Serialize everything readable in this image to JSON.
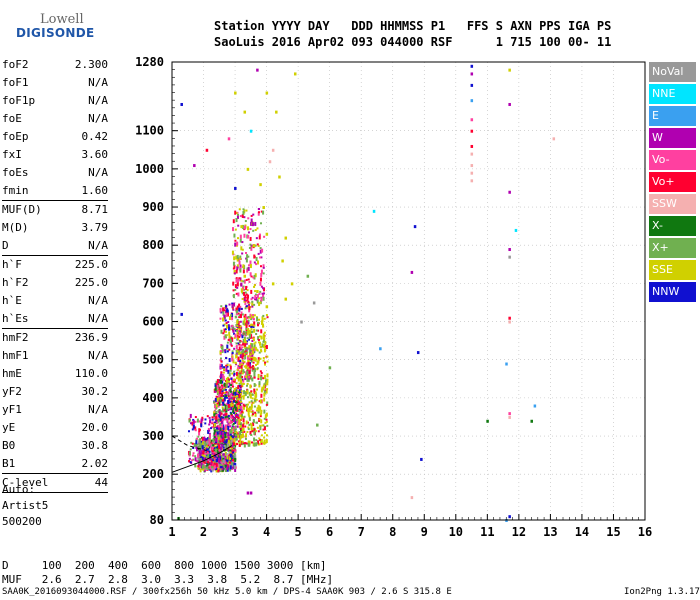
{
  "logo": {
    "line1": "Lowell",
    "line2": "DIGISONDE"
  },
  "header": {
    "line1": "Station YYYY DAY   DDD HHMMSS P1   FFS S AXN PPS IGA PS",
    "line2": "SaoLuis 2016 Apr02 093 044000 RSF      1 715 100 00- 11"
  },
  "params": [
    {
      "k": "foF2",
      "v": "2.300"
    },
    {
      "k": "foF1",
      "v": "N/A"
    },
    {
      "k": "foF1p",
      "v": "N/A"
    },
    {
      "k": "foE",
      "v": "N/A"
    },
    {
      "k": "foEp",
      "v": "0.42"
    },
    {
      "k": "fxI",
      "v": "3.60"
    },
    {
      "k": "foEs",
      "v": "N/A"
    },
    {
      "k": "fmin",
      "v": "1.60",
      "sep": true
    },
    {
      "k": "MUF(D)",
      "v": "8.71"
    },
    {
      "k": "M(D)",
      "v": "3.79"
    },
    {
      "k": "D",
      "v": "N/A",
      "sep": true
    },
    {
      "k": "h`F",
      "v": "225.0"
    },
    {
      "k": "h`F2",
      "v": "225.0"
    },
    {
      "k": "h`E",
      "v": "N/A"
    },
    {
      "k": "h`Es",
      "v": "N/A",
      "sep": true
    },
    {
      "k": "hmF2",
      "v": "236.9"
    },
    {
      "k": "hmF1",
      "v": "N/A"
    },
    {
      "k": "hmE",
      "v": "110.0"
    },
    {
      "k": "yF2",
      "v": "30.2"
    },
    {
      "k": "yF1",
      "v": "N/A"
    },
    {
      "k": "yE",
      "v": "20.0"
    },
    {
      "k": "B0",
      "v": "30.8"
    },
    {
      "k": "B1",
      "v": "2.02",
      "sep": true
    },
    {
      "k": "C-level",
      "v": "44",
      "sep": true
    }
  ],
  "auto": {
    "l1": "Auto:",
    "l2": "Artist5",
    "l3": "500200"
  },
  "legend": [
    {
      "label": "NoVal",
      "color": "#999999"
    },
    {
      "label": "NNE",
      "color": "#00e5ff"
    },
    {
      "label": "E",
      "color": "#3aa0f0"
    },
    {
      "label": "W",
      "color": "#b000b0"
    },
    {
      "label": "Vo-",
      "color": "#ff40a0"
    },
    {
      "label": "Vo+",
      "color": "#ff0030"
    },
    {
      "label": "SSW",
      "color": "#f5b0b0"
    },
    {
      "label": "X-",
      "color": "#107810"
    },
    {
      "label": "X+",
      "color": "#70b050"
    },
    {
      "label": "SSE",
      "color": "#d0d000"
    },
    {
      "label": "NNW",
      "color": "#1010d0"
    }
  ],
  "muf": {
    "line1": "D     100  200  400  600  800 1000 1500 3000 [km]",
    "line2": "MUF   2.6  2.7  2.8  3.0  3.3  3.8  5.2  8.7 [MHz]"
  },
  "footer": {
    "left": "SAA0K_2016093044000.RSF / 300fx256h 50 kHz 5.0 km / DPS-4 SAA0K 903 / 2.6 S 315.8 E",
    "right": "Ion2Png 1.3.17"
  },
  "chart_data": {
    "type": "scatter",
    "xlim": [
      1,
      16
    ],
    "ylim": [
      80,
      1280
    ],
    "x_ticks": [
      1,
      2,
      3,
      4,
      5,
      6,
      7,
      8,
      9,
      10,
      11,
      12,
      13,
      14,
      15,
      16
    ],
    "y_ticks": [
      80,
      200,
      300,
      400,
      500,
      600,
      700,
      800,
      900,
      1000,
      1100,
      1280
    ],
    "xlabel": "",
    "ylabel": "",
    "trace": {
      "x": [
        1.0,
        1.5,
        2.0,
        2.5,
        2.9
      ],
      "y": [
        205,
        220,
        235,
        255,
        275
      ]
    },
    "points": [
      {
        "x": 1.3,
        "y": 1170,
        "c": "NNW"
      },
      {
        "x": 1.3,
        "y": 620,
        "c": "NNW"
      },
      {
        "x": 1.2,
        "y": 85,
        "c": "X-"
      },
      {
        "x": 1.7,
        "y": 1010,
        "c": "W"
      },
      {
        "x": 2.1,
        "y": 1050,
        "c": "Vo+"
      },
      {
        "x": 2.8,
        "y": 1080,
        "c": "Vo-"
      },
      {
        "x": 3.0,
        "y": 1200,
        "c": "SSE"
      },
      {
        "x": 3.3,
        "y": 1150,
        "c": "SSE"
      },
      {
        "x": 4.0,
        "y": 1200,
        "c": "SSE"
      },
      {
        "x": 4.3,
        "y": 1150,
        "c": "SSE"
      },
      {
        "x": 3.5,
        "y": 1100,
        "c": "NNE"
      },
      {
        "x": 3.0,
        "y": 950,
        "c": "NNW"
      },
      {
        "x": 3.4,
        "y": 1000,
        "c": "SSE"
      },
      {
        "x": 3.8,
        "y": 960,
        "c": "SSE"
      },
      {
        "x": 4.1,
        "y": 1020,
        "c": "SSW"
      },
      {
        "x": 4.2,
        "y": 1050,
        "c": "SSW"
      },
      {
        "x": 4.4,
        "y": 980,
        "c": "SSE"
      },
      {
        "x": 3.9,
        "y": 900,
        "c": "SSE"
      },
      {
        "x": 3.2,
        "y": 850,
        "c": "SSE"
      },
      {
        "x": 3.6,
        "y": 800,
        "c": "SSE"
      },
      {
        "x": 4.0,
        "y": 830,
        "c": "SSE"
      },
      {
        "x": 4.6,
        "y": 820,
        "c": "SSE"
      },
      {
        "x": 4.5,
        "y": 760,
        "c": "SSE"
      },
      {
        "x": 4.2,
        "y": 700,
        "c": "SSE"
      },
      {
        "x": 3.3,
        "y": 720,
        "c": "SSE"
      },
      {
        "x": 3.7,
        "y": 680,
        "c": "SSE"
      },
      {
        "x": 4.0,
        "y": 640,
        "c": "SSE"
      },
      {
        "x": 4.6,
        "y": 660,
        "c": "SSE"
      },
      {
        "x": 4.8,
        "y": 700,
        "c": "SSE"
      },
      {
        "x": 5.5,
        "y": 650,
        "c": "NoVal"
      },
      {
        "x": 5.3,
        "y": 720,
        "c": "X+"
      },
      {
        "x": 5.1,
        "y": 600,
        "c": "NoVal"
      },
      {
        "x": 6.0,
        "y": 480,
        "c": "X+"
      },
      {
        "x": 5.6,
        "y": 330,
        "c": "X+"
      },
      {
        "x": 4.9,
        "y": 1250,
        "c": "SSE"
      },
      {
        "x": 3.7,
        "y": 1260,
        "c": "W"
      },
      {
        "x": 7.4,
        "y": 890,
        "c": "NNE"
      },
      {
        "x": 7.6,
        "y": 530,
        "c": "E"
      },
      {
        "x": 8.7,
        "y": 850,
        "c": "NNW"
      },
      {
        "x": 8.6,
        "y": 730,
        "c": "W"
      },
      {
        "x": 8.8,
        "y": 520,
        "c": "NNW"
      },
      {
        "x": 8.9,
        "y": 240,
        "c": "NNW"
      },
      {
        "x": 8.6,
        "y": 140,
        "c": "SSW"
      },
      {
        "x": 10.5,
        "y": 1270,
        "c": "NNW"
      },
      {
        "x": 10.5,
        "y": 1250,
        "c": "W"
      },
      {
        "x": 10.5,
        "y": 1220,
        "c": "NNW"
      },
      {
        "x": 10.5,
        "y": 1180,
        "c": "E"
      },
      {
        "x": 10.5,
        "y": 1130,
        "c": "Vo-"
      },
      {
        "x": 10.5,
        "y": 1100,
        "c": "Vo+"
      },
      {
        "x": 10.5,
        "y": 1060,
        "c": "Vo+"
      },
      {
        "x": 10.5,
        "y": 1040,
        "c": "SSW"
      },
      {
        "x": 10.5,
        "y": 1010,
        "c": "SSW"
      },
      {
        "x": 10.5,
        "y": 990,
        "c": "SSW"
      },
      {
        "x": 10.5,
        "y": 970,
        "c": "SSW"
      },
      {
        "x": 11.7,
        "y": 1260,
        "c": "SSE"
      },
      {
        "x": 11.7,
        "y": 1170,
        "c": "W"
      },
      {
        "x": 11.7,
        "y": 940,
        "c": "W"
      },
      {
        "x": 11.7,
        "y": 790,
        "c": "W"
      },
      {
        "x": 11.7,
        "y": 770,
        "c": "NoVal"
      },
      {
        "x": 11.7,
        "y": 610,
        "c": "Vo+"
      },
      {
        "x": 11.7,
        "y": 600,
        "c": "SSW"
      },
      {
        "x": 11.6,
        "y": 490,
        "c": "E"
      },
      {
        "x": 11.7,
        "y": 360,
        "c": "Vo-"
      },
      {
        "x": 11.7,
        "y": 350,
        "c": "SSW"
      },
      {
        "x": 11.7,
        "y": 90,
        "c": "NNW"
      },
      {
        "x": 11.6,
        "y": 80,
        "c": "E"
      },
      {
        "x": 11.0,
        "y": 340,
        "c": "X-"
      },
      {
        "x": 11.9,
        "y": 840,
        "c": "NNE"
      },
      {
        "x": 12.4,
        "y": 340,
        "c": "X-"
      },
      {
        "x": 12.5,
        "y": 380,
        "c": "E"
      },
      {
        "x": 13.1,
        "y": 1080,
        "c": "SSW"
      },
      {
        "x": 3.4,
        "y": 152,
        "c": "W"
      },
      {
        "x": 3.5,
        "y": 152,
        "c": "W"
      }
    ],
    "clusters": [
      {
        "x": [
          1.8,
          3.0
        ],
        "y": [
          215,
          300
        ],
        "n": 700,
        "colors": [
          "Vo+",
          "Vo-",
          "X+",
          "W",
          "NNW",
          "SSE",
          "X-",
          "NoVal"
        ]
      },
      {
        "x": [
          2.3,
          3.2
        ],
        "y": [
          300,
          450
        ],
        "n": 500,
        "colors": [
          "Vo+",
          "Vo-",
          "X+",
          "W",
          "NNW",
          "SSE",
          "X-"
        ]
      },
      {
        "x": [
          2.5,
          3.6
        ],
        "y": [
          450,
          650
        ],
        "n": 350,
        "colors": [
          "Vo+",
          "Vo-",
          "SSE",
          "W",
          "NNW",
          "X+"
        ]
      },
      {
        "x": [
          2.9,
          3.9
        ],
        "y": [
          650,
          900
        ],
        "n": 220,
        "colors": [
          "SSE",
          "Vo-",
          "Vo+",
          "W",
          "X+"
        ]
      },
      {
        "x": [
          3.0,
          4.0
        ],
        "y": [
          280,
          620
        ],
        "n": 450,
        "colors": [
          "SSE",
          "SSE",
          "X+",
          "Vo+"
        ]
      },
      {
        "x": [
          1.5,
          2.6
        ],
        "y": [
          220,
          360
        ],
        "n": 180,
        "colors": [
          "Vo+",
          "W",
          "Vo-",
          "NNW",
          "X+"
        ]
      }
    ]
  }
}
